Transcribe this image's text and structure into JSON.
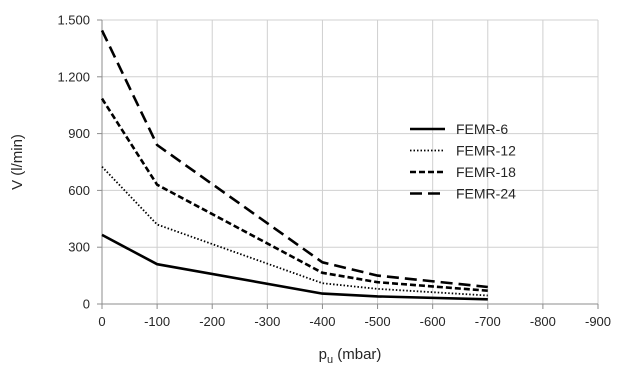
{
  "chart_data": {
    "type": "line",
    "title": "",
    "xlabel_main": "p",
    "xlabel_sub": "u",
    "xlabel_unit": " (mbar)",
    "ylabel": "V  (l/min)",
    "xlim": [
      0,
      -900
    ],
    "ylim": [
      0,
      1500
    ],
    "x_ticks": [
      0,
      -100,
      -200,
      -300,
      -400,
      -500,
      -600,
      -700,
      -800,
      -900
    ],
    "x_tick_labels": [
      "0",
      "-100",
      "-200",
      "-300",
      "-400",
      "-500",
      "-600",
      "-700",
      "-800",
      "-900"
    ],
    "y_ticks": [
      0,
      300,
      600,
      900,
      1200,
      1500
    ],
    "y_tick_labels": [
      "0",
      "300",
      "600",
      "900",
      "1.200",
      "1.500"
    ],
    "grid": true,
    "legend_position": "center-right",
    "x": [
      0,
      -100,
      -400,
      -500,
      -700
    ],
    "series": [
      {
        "name": "FEMR-6",
        "values": [
          365,
          210,
          55,
          40,
          25
        ],
        "style": "solid",
        "color": "#000000"
      },
      {
        "name": "FEMR-12",
        "values": [
          725,
          420,
          110,
          80,
          45
        ],
        "style": "dotted",
        "color": "#000000"
      },
      {
        "name": "FEMR-18",
        "values": [
          1085,
          630,
          165,
          115,
          70
        ],
        "style": "dashed-short",
        "color": "#000000"
      },
      {
        "name": "FEMR-24",
        "values": [
          1445,
          840,
          220,
          150,
          90
        ],
        "style": "dashed-long",
        "color": "#000000"
      }
    ]
  }
}
